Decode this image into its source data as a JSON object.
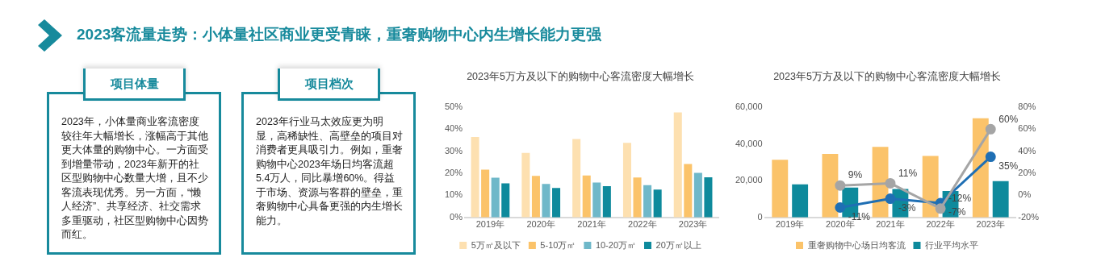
{
  "chart_data": [
    {
      "type": "other",
      "title": "2023客流量走势：小体量社区商业更受青睐，重奢购物中心内生增长能力更强"
    },
    {
      "type": "other",
      "title": "项目体量",
      "annotations": [
        "2023年，小体量商业客流密度较往年大幅增长，涨幅高于其他更大体量的购物中心。一方面受到增量带动，2023年新开的社区型购物中心数量大增，且不少客流表现优秀。另一方面，“懒人经济”、共享经济、社交需求多重驱动，社区型购物中心因势而红。"
      ]
    },
    {
      "type": "other",
      "title": "项目档次",
      "annotations": [
        "2023年行业马太效应更为明显，高稀缺性、高壁垒的项目对消费者更具吸引力。例如，重奢购物中心2023年场日均客流超5.4万人，同比暴增60%。得益于市场、资源与客群的壁垒，重奢购物中心具备更强的内生增长能力。"
      ]
    },
    {
      "type": "bar",
      "title": "2023年5万方及以下的购物中心客流密度大幅增长",
      "categories": [
        "2019年",
        "2020年",
        "2021年",
        "2022年",
        "2023年"
      ],
      "series": [
        {
          "name": "5万㎡及以下",
          "color": "#fde0b0",
          "values": [
            36.5,
            29.3,
            35.6,
            33.8,
            47.6
          ]
        },
        {
          "name": "5-10万㎡",
          "color": "#fbc36a",
          "values": [
            21.7,
            18.8,
            19,
            18.1,
            24.2
          ]
        },
        {
          "name": "10-20万㎡",
          "color": "#6fb8c9",
          "values": [
            18,
            15.2,
            15.8,
            14.6,
            20.2
          ]
        },
        {
          "name": "20万㎡以上",
          "color": "#0e8a9c",
          "values": [
            15.5,
            13.4,
            14.2,
            12.6,
            18.2
          ]
        }
      ],
      "ylim": [
        0,
        50
      ],
      "yticks": [
        {
          "value": 0,
          "label": "0%"
        },
        {
          "value": 10,
          "label": "10%"
        },
        {
          "value": 20,
          "label": "20%"
        },
        {
          "value": 30,
          "label": "30%"
        },
        {
          "value": 40,
          "label": "40%"
        },
        {
          "value": 50,
          "label": "50%"
        }
      ],
      "legend": "bottom"
    },
    {
      "type": "bar",
      "title": "2023年5万方及以下的购物中心客流密度大幅增长",
      "categories": [
        "2019年",
        "2020年",
        "2021年",
        "2022年",
        "2023年"
      ],
      "series": [
        {
          "name": "重奢购物中心场日均客流",
          "color": "#fbc36a",
          "values": [
            31400,
            34600,
            38400,
            33500,
            54000
          ]
        },
        {
          "name": "行业平均水平",
          "color": "#0e8a9c",
          "values": [
            18000,
            16200,
            15500,
            14400,
            19800
          ]
        },
        {
          "type": "line",
          "axis": "y2",
          "color": "#a5a5a5",
          "values": [
            null,
            9,
            11,
            -12,
            60
          ],
          "value_labels": [
            null,
            "9%",
            "11%",
            "-12%",
            "60%"
          ]
        },
        {
          "type": "line",
          "axis": "y2",
          "color": "#1f6fb4",
          "values": [
            null,
            -11,
            -3,
            -7,
            35
          ],
          "value_labels": [
            null,
            "-11%",
            "-3%",
            "-7%",
            "35%"
          ]
        }
      ],
      "ylim": [
        0,
        60000
      ],
      "yticks": [
        0,
        {
          "value": 20000,
          "label": "20,000"
        },
        {
          "value": 40000,
          "label": "40,000"
        },
        {
          "value": 60000,
          "label": "60,000"
        }
      ],
      "y2lim": [
        -20,
        80
      ],
      "y2ticks": [
        {
          "value": -20,
          "label": "-20%"
        },
        {
          "value": 0,
          "label": "0%"
        },
        {
          "value": 20,
          "label": "20%"
        },
        {
          "value": 40,
          "label": "40%"
        },
        {
          "value": 60,
          "label": "60%"
        },
        {
          "value": 80,
          "label": "80%"
        }
      ],
      "marker": "circle",
      "legend": "bottom"
    }
  ]
}
